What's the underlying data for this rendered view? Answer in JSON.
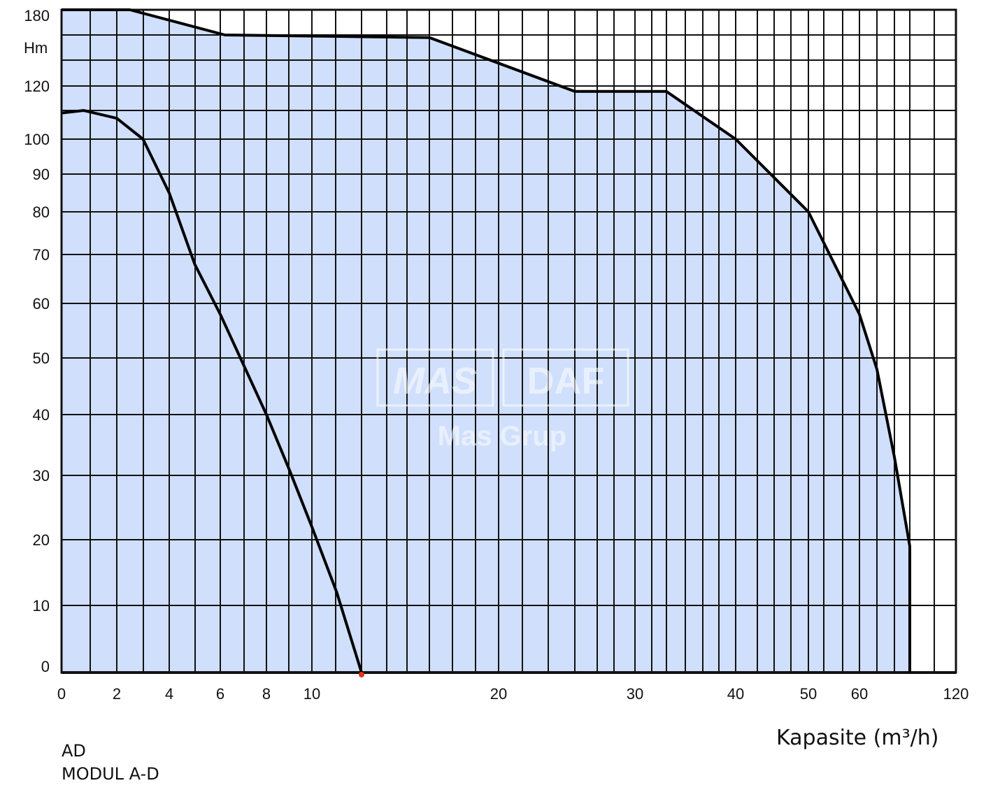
{
  "chart_data": {
    "type": "area",
    "xlabel": "Kapasite (m³/h)",
    "ylabel": "Hm",
    "x_tick_labels": [
      "0",
      "2",
      "4",
      "6",
      "8",
      "10",
      "20",
      "30",
      "40",
      "50",
      "60",
      "120"
    ],
    "y_tick_labels": [
      "0",
      "10",
      "20",
      "30",
      "40",
      "50",
      "60",
      "70",
      "80",
      "90",
      "100",
      "120",
      "180"
    ],
    "grid": true,
    "fill_color": "#d0dffb",
    "line_color": "#000000",
    "series": [
      {
        "role": "outer-envelope",
        "points": [
          {
            "x": 0,
            "y": 180
          },
          {
            "x": 2.5,
            "y": 180
          },
          {
            "x": 6.2,
            "y": 160
          },
          {
            "x": 16,
            "y": 158
          },
          {
            "x": 25,
            "y": 118
          },
          {
            "x": 33,
            "y": 118
          },
          {
            "x": 40,
            "y": 100
          },
          {
            "x": 50,
            "y": 80
          },
          {
            "x": 60,
            "y": 58
          },
          {
            "x": 62,
            "y": 48
          },
          {
            "x": 64,
            "y": 33
          },
          {
            "x": 66,
            "y": 19
          },
          {
            "x": 66,
            "y": 0
          }
        ]
      },
      {
        "role": "inner-curve",
        "points": [
          {
            "x": 0,
            "y": 110
          },
          {
            "x": 0.8,
            "y": 111
          },
          {
            "x": 2,
            "y": 108
          },
          {
            "x": 3,
            "y": 100
          },
          {
            "x": 4,
            "y": 85
          },
          {
            "x": 5,
            "y": 68
          },
          {
            "x": 6,
            "y": 58
          },
          {
            "x": 8,
            "y": 40
          },
          {
            "x": 9,
            "y": 31
          },
          {
            "x": 10,
            "y": 22
          },
          {
            "x": 11,
            "y": 12
          },
          {
            "x": 12,
            "y": 0
          }
        ]
      }
    ],
    "end_marker": {
      "x": 12,
      "y": 0,
      "color": "#e8321e"
    }
  },
  "labels": {
    "model_line1": "AD",
    "model_line2": "MODUL A-D"
  },
  "watermark": {
    "logo_left": "MAS",
    "logo_right": "DAF",
    "text": "Mas Grup"
  }
}
